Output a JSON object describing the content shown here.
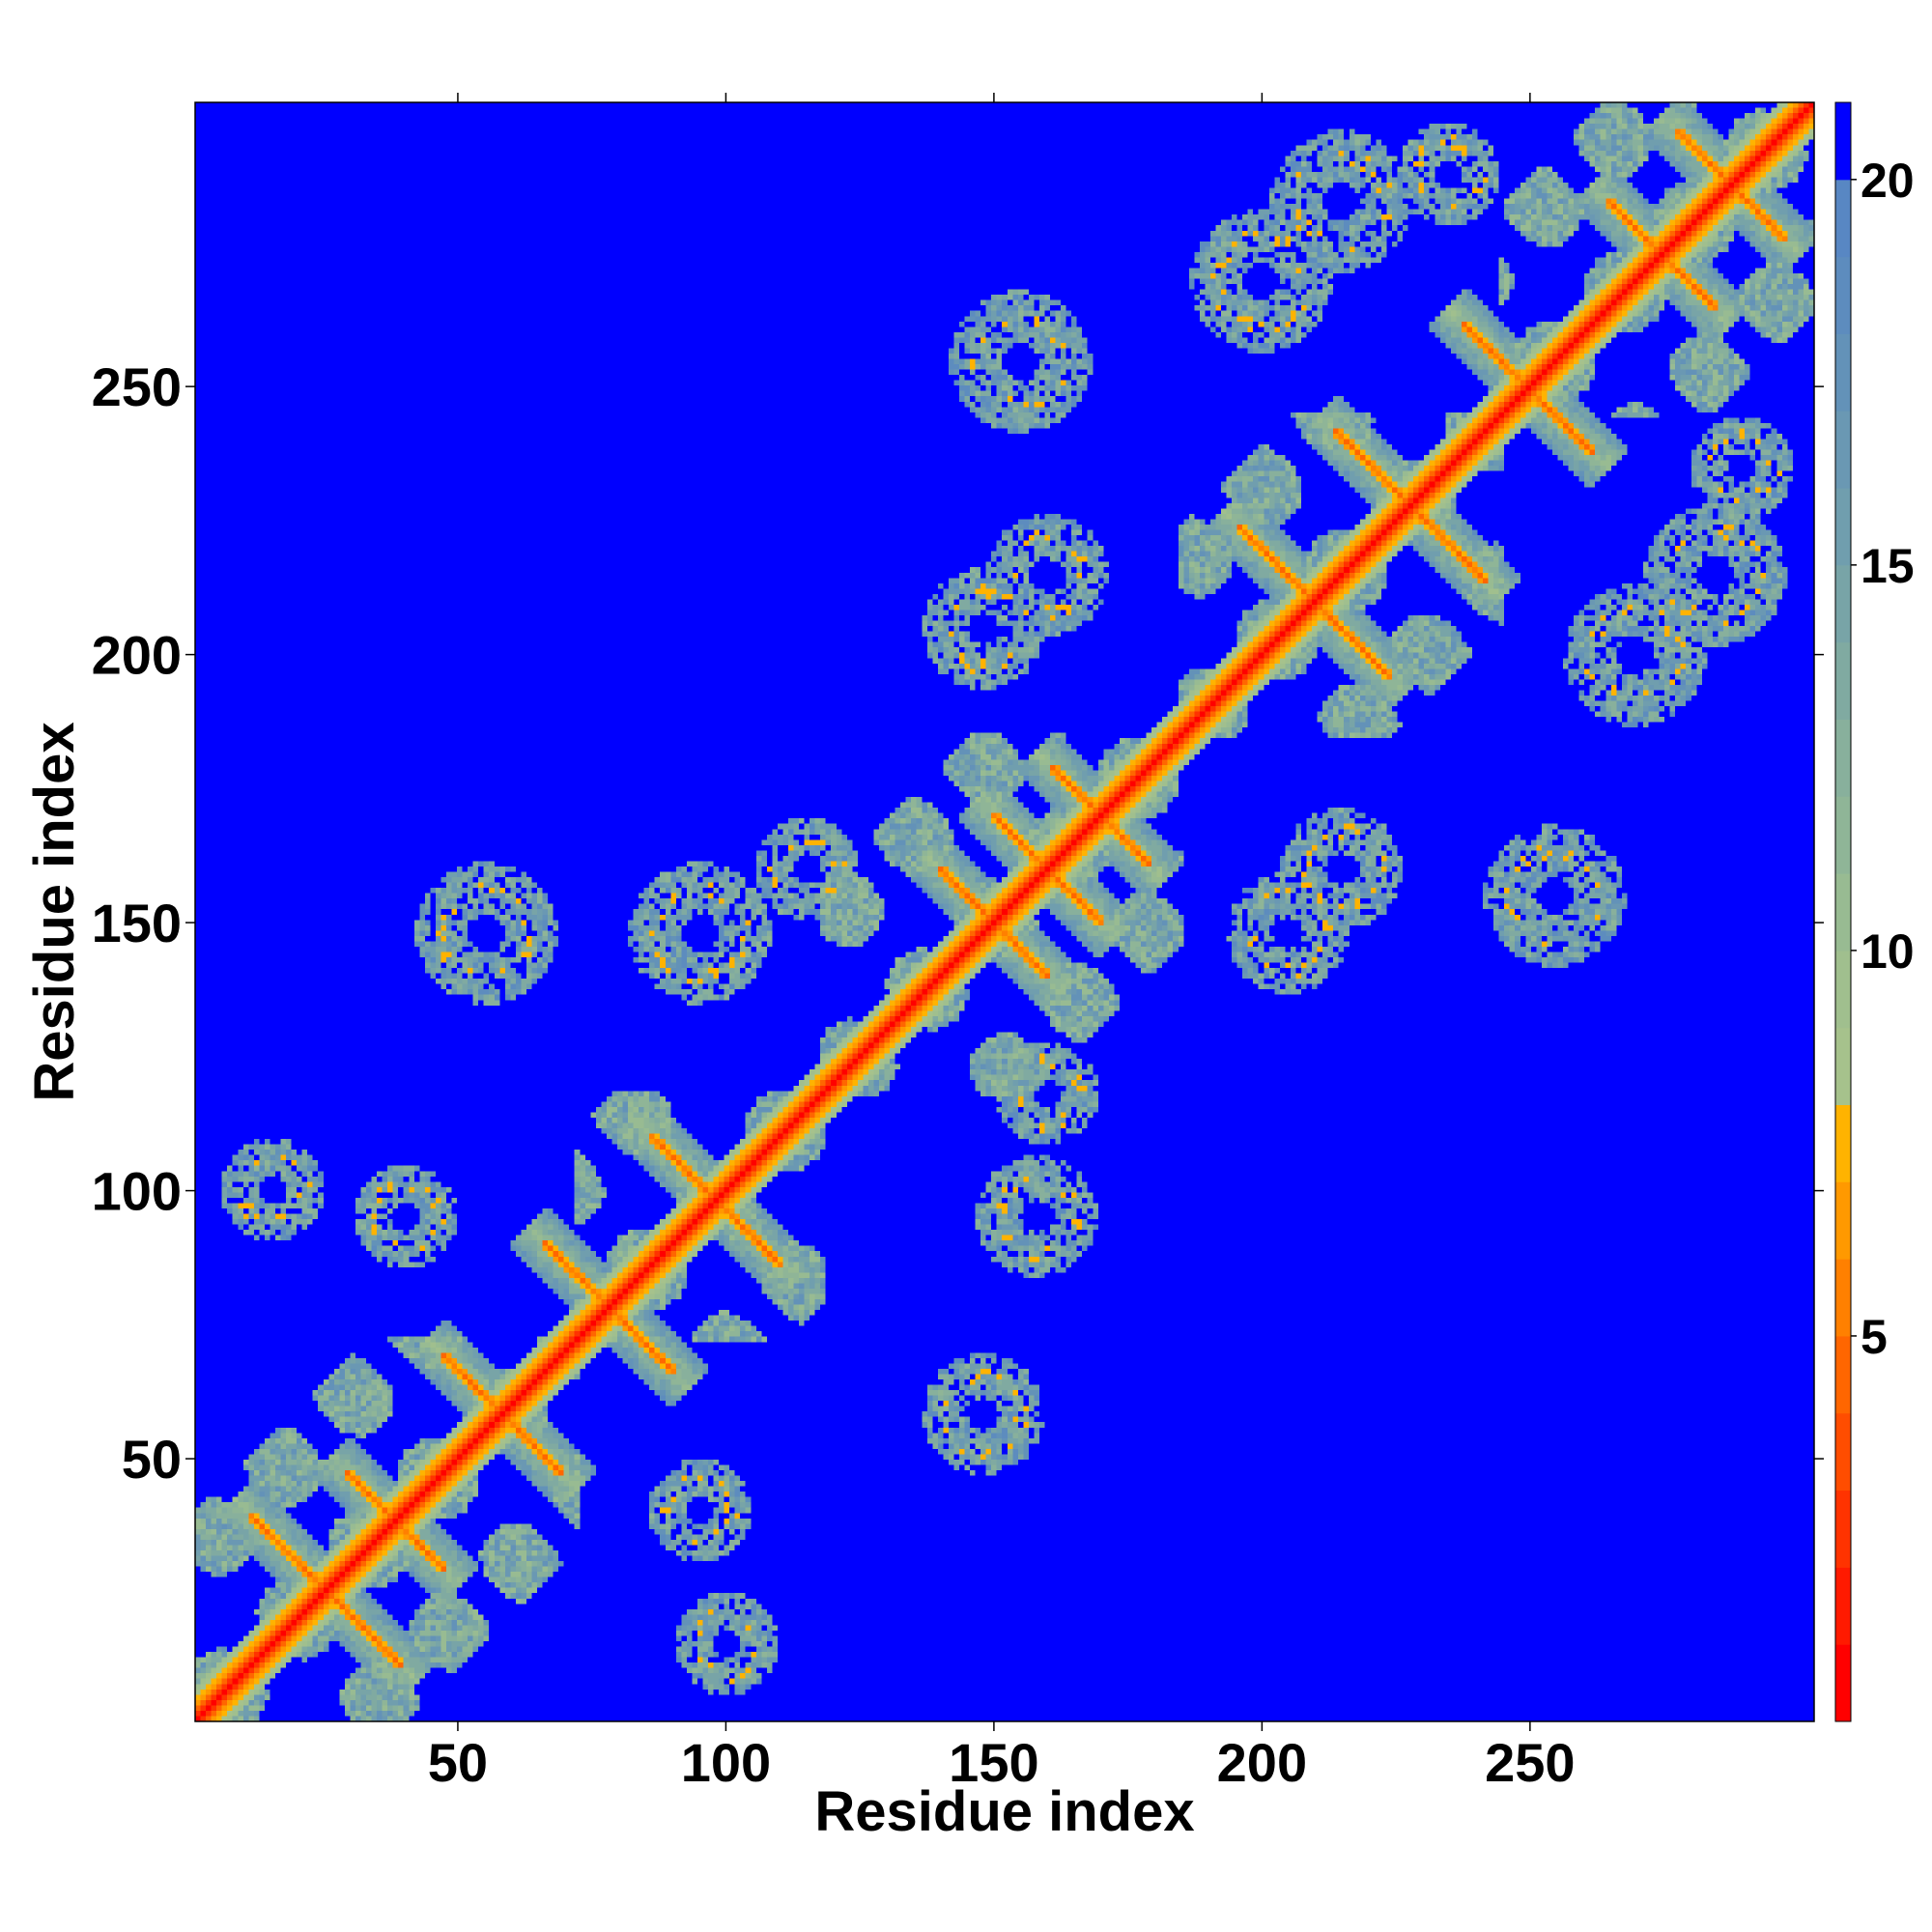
{
  "chart_data": {
    "type": "heatmap",
    "title": "",
    "xlabel": "Residue index",
    "ylabel": "Residue index",
    "n_residues": 303,
    "xlim": [
      1,
      303
    ],
    "ylim": [
      1,
      303
    ],
    "x_ticks": [
      50,
      100,
      150,
      200,
      250
    ],
    "y_ticks": [
      50,
      100,
      150,
      200,
      250
    ],
    "x_tick_labels": [
      "50",
      "100",
      "150",
      "200",
      "250"
    ],
    "y_tick_labels": [
      "50",
      "100",
      "150",
      "200",
      "250"
    ],
    "description_of_values": "Pairwise residue distance map; diagonal near 0, background saturated at maximum",
    "colorbar": {
      "min": 0,
      "max": 21,
      "ticks": [
        5,
        10,
        15,
        20
      ],
      "tick_labels": [
        "5",
        "10",
        "15",
        "20"
      ],
      "bins": [
        {
          "from": 0,
          "to": 1,
          "color": "#ff0000"
        },
        {
          "from": 1,
          "to": 2,
          "color": "#ff1a00"
        },
        {
          "from": 2,
          "to": 3,
          "color": "#ff3300"
        },
        {
          "from": 3,
          "to": 4,
          "color": "#ff4d00"
        },
        {
          "from": 4,
          "to": 5,
          "color": "#ff6600"
        },
        {
          "from": 5,
          "to": 6,
          "color": "#ff8000"
        },
        {
          "from": 6,
          "to": 7,
          "color": "#ff9900"
        },
        {
          "from": 7,
          "to": 8,
          "color": "#ffb300"
        },
        {
          "from": 8,
          "to": 9,
          "color": "#a6c28c"
        },
        {
          "from": 9,
          "to": 10,
          "color": "#a0bf8e"
        },
        {
          "from": 10,
          "to": 11,
          "color": "#98bb92"
        },
        {
          "from": 11,
          "to": 12,
          "color": "#8fb597"
        },
        {
          "from": 12,
          "to": 13,
          "color": "#88b09c"
        },
        {
          "from": 13,
          "to": 14,
          "color": "#80aaa1"
        },
        {
          "from": 14,
          "to": 15,
          "color": "#78a4a7"
        },
        {
          "from": 15,
          "to": 16,
          "color": "#709eae"
        },
        {
          "from": 16,
          "to": 17,
          "color": "#6a98b3"
        },
        {
          "from": 17,
          "to": 18,
          "color": "#6392b8"
        },
        {
          "from": 18,
          "to": 19,
          "color": "#5d8cbe"
        },
        {
          "from": 19,
          "to": 20,
          "color": "#5887c3"
        },
        {
          "from": 20,
          "to": 21,
          "color": "#0000ff"
        }
      ]
    },
    "features": {
      "diagonal_color": "#ff0000",
      "background_color": "#0000ff",
      "contact_color": "#ff6a00",
      "structure_blocks": [
        {
          "start": 1,
          "end": 72
        },
        {
          "start": 72,
          "end": 118
        },
        {
          "start": 118,
          "end": 185
        },
        {
          "start": 185,
          "end": 245
        },
        {
          "start": 245,
          "end": 303
        }
      ],
      "antiparallel_contacts": [
        {
          "center": 25,
          "half_length": 14
        },
        {
          "center": 38,
          "half_length": 9
        },
        {
          "center": 58,
          "half_length": 11
        },
        {
          "center": 78,
          "half_length": 12
        },
        {
          "center": 98,
          "half_length": 12
        },
        {
          "center": 150,
          "half_length": 10
        },
        {
          "center": 160,
          "half_length": 10
        },
        {
          "center": 170,
          "half_length": 9
        },
        {
          "center": 210,
          "half_length": 14
        },
        {
          "center": 228,
          "half_length": 14
        },
        {
          "center": 250,
          "half_length": 12
        },
        {
          "center": 275,
          "half_length": 10
        },
        {
          "center": 288,
          "half_length": 10
        }
      ],
      "off_diagonal_patches": [
        {
          "x": 55,
          "y": 148,
          "r": 14
        },
        {
          "x": 95,
          "y": 148,
          "r": 14
        },
        {
          "x": 115,
          "y": 160,
          "r": 10
        },
        {
          "x": 148,
          "y": 58,
          "r": 12
        },
        {
          "x": 158,
          "y": 95,
          "r": 12
        },
        {
          "x": 160,
          "y": 118,
          "r": 10
        },
        {
          "x": 148,
          "y": 205,
          "r": 12
        },
        {
          "x": 160,
          "y": 215,
          "r": 12
        },
        {
          "x": 205,
          "y": 148,
          "r": 12
        },
        {
          "x": 215,
          "y": 160,
          "r": 12
        },
        {
          "x": 200,
          "y": 270,
          "r": 14
        },
        {
          "x": 215,
          "y": 285,
          "r": 14
        },
        {
          "x": 270,
          "y": 200,
          "r": 14
        },
        {
          "x": 285,
          "y": 215,
          "r": 14
        },
        {
          "x": 155,
          "y": 255,
          "r": 14
        },
        {
          "x": 255,
          "y": 155,
          "r": 14
        },
        {
          "x": 15,
          "y": 100,
          "r": 10
        },
        {
          "x": 40,
          "y": 95,
          "r": 10
        },
        {
          "x": 100,
          "y": 15,
          "r": 10
        },
        {
          "x": 95,
          "y": 40,
          "r": 10
        },
        {
          "x": 290,
          "y": 235,
          "r": 10
        },
        {
          "x": 235,
          "y": 290,
          "r": 10
        }
      ]
    }
  }
}
